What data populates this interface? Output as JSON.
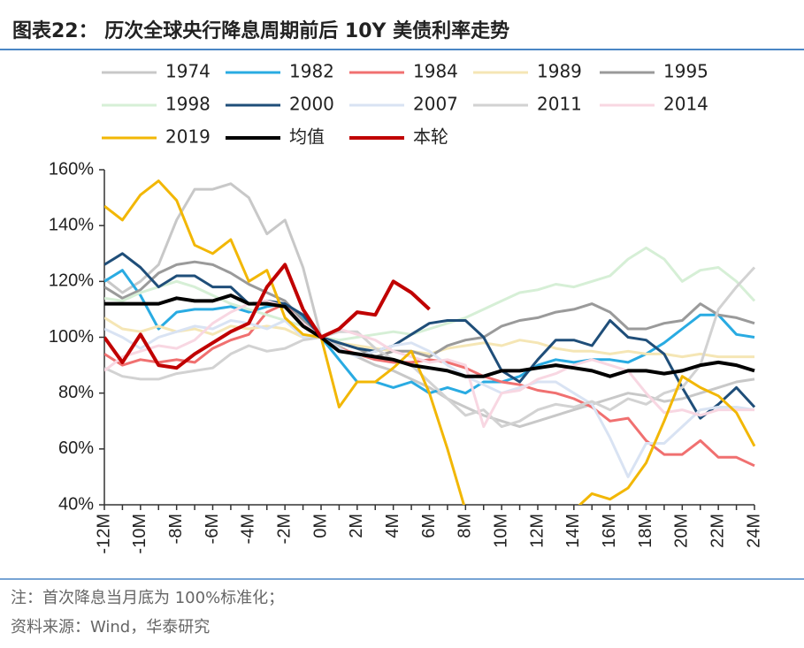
{
  "chart_data": {
    "type": "line",
    "title": "图表22： 历次全球央行降息周期前后 10Y 美债利率走势",
    "notes": [
      "注：首次降息当月底为 100%标准化；",
      "资料来源：Wind，华泰研究"
    ],
    "categories": [
      "-12M",
      null,
      "-10M",
      null,
      "-8M",
      null,
      "-6M",
      null,
      "-4M",
      null,
      "-2M",
      null,
      "0M",
      null,
      "2M",
      null,
      "4M",
      null,
      "6M",
      null,
      "8M",
      null,
      "10M",
      null,
      "12M",
      null,
      "14M",
      null,
      "16M",
      null,
      "18M",
      null,
      "20M",
      null,
      "22M",
      null,
      "24M"
    ],
    "ylim": [
      40,
      160
    ],
    "yticks": [
      {
        "value": 40,
        "label": "40%"
      },
      {
        "value": 60,
        "label": "60%"
      },
      {
        "value": 80,
        "label": "80%"
      },
      {
        "value": 100,
        "label": "100%"
      },
      {
        "value": 120,
        "label": "120%"
      },
      {
        "value": 140,
        "label": "140%"
      },
      {
        "value": 160,
        "label": "160%"
      }
    ],
    "grid": false,
    "legend": "top",
    "series": [
      {
        "name": "1974",
        "color": "#c8c8c8",
        "values": [
          121,
          116,
          120,
          126,
          142,
          153,
          153,
          155,
          150,
          137,
          142,
          125,
          100,
          97,
          93,
          90,
          88,
          85,
          82,
          78,
          75,
          72,
          70,
          68,
          70,
          72,
          74,
          76,
          78,
          80,
          79,
          77,
          78,
          80,
          82,
          84,
          85
        ]
      },
      {
        "name": "1982",
        "color": "#29abe2",
        "values": [
          120,
          124,
          115,
          103,
          109,
          110,
          110,
          111,
          109,
          111,
          112,
          107,
          100,
          92,
          84,
          84,
          82,
          84,
          80,
          82,
          80,
          84,
          84,
          86,
          90,
          92,
          91,
          92,
          92,
          91,
          94,
          98,
          103,
          108,
          108,
          101,
          100
        ]
      },
      {
        "name": "1984",
        "color": "#f07070",
        "values": [
          94,
          90,
          92,
          91,
          92,
          91,
          96,
          99,
          101,
          109,
          112,
          104,
          100,
          96,
          94,
          92,
          91,
          91,
          92,
          91,
          89,
          86,
          84,
          83,
          81,
          80,
          78,
          75,
          70,
          71,
          63,
          58,
          58,
          63,
          57,
          57,
          54
        ]
      },
      {
        "name": "1989",
        "color": "#f5e6b5",
        "values": [
          107,
          103,
          102,
          104,
          102,
          103,
          101,
          104,
          103,
          104,
          103,
          100,
          100,
          98,
          97,
          96,
          95,
          95,
          94,
          96,
          97,
          98,
          97,
          99,
          98,
          96,
          95,
          95,
          94,
          95,
          94,
          94,
          93,
          94,
          93,
          93,
          93
        ]
      },
      {
        "name": "1995",
        "color": "#9a9a9a",
        "values": [
          118,
          114,
          117,
          123,
          126,
          127,
          126,
          123,
          119,
          116,
          113,
          106,
          100,
          98,
          96,
          93,
          95,
          95,
          93,
          97,
          99,
          100,
          104,
          106,
          107,
          109,
          110,
          112,
          109,
          103,
          103,
          105,
          106,
          112,
          108,
          107,
          105
        ]
      },
      {
        "name": "1998",
        "color": "#d6efd6",
        "values": [
          114,
          113,
          116,
          118,
          120,
          118,
          115,
          112,
          110,
          108,
          106,
          104,
          100,
          99,
          100,
          101,
          102,
          101,
          103,
          105,
          107,
          110,
          113,
          116,
          117,
          119,
          118,
          120,
          122,
          128,
          132,
          128,
          120,
          124,
          125,
          120,
          113
        ]
      },
      {
        "name": "2000",
        "color": "#1f4e79",
        "values": [
          126,
          130,
          125,
          118,
          122,
          122,
          118,
          118,
          112,
          113,
          112,
          108,
          100,
          98,
          96,
          95,
          97,
          101,
          105,
          106,
          106,
          100,
          88,
          84,
          92,
          99,
          99,
          97,
          106,
          100,
          99,
          94,
          82,
          71,
          76,
          82,
          75
        ]
      },
      {
        "name": "2007",
        "color": "#d9e3f3",
        "values": [
          103,
          100,
          96,
          100,
          102,
          104,
          103,
          106,
          105,
          103,
          106,
          100,
          100,
          96,
          93,
          95,
          97,
          98,
          95,
          90,
          86,
          83,
          80,
          82,
          84,
          84,
          80,
          76,
          64,
          50,
          62,
          62,
          68,
          74,
          75,
          75,
          74
        ]
      },
      {
        "name": "2011",
        "color": "#d2d2d2",
        "values": [
          89,
          86,
          85,
          85,
          87,
          88,
          89,
          94,
          97,
          95,
          96,
          99,
          100,
          102,
          102,
          96,
          92,
          90,
          84,
          78,
          72,
          74,
          68,
          70,
          74,
          76,
          75,
          77,
          74,
          78,
          76,
          80,
          82,
          90,
          110,
          118,
          125
        ]
      },
      {
        "name": "2014",
        "color": "#f8d7e2",
        "values": [
          88,
          93,
          95,
          97,
          96,
          99,
          105,
          109,
          112,
          113,
          111,
          105,
          100,
          103,
          101,
          99,
          95,
          93,
          91,
          92,
          90,
          68,
          80,
          81,
          85,
          87,
          90,
          92,
          90,
          88,
          80,
          73,
          74,
          72,
          74,
          74,
          74
        ]
      },
      {
        "name": "2019",
        "color": "#f2b705",
        "values": [
          147,
          142,
          151,
          156,
          149,
          133,
          130,
          135,
          120,
          124,
          107,
          101,
          100,
          75,
          84,
          84,
          89,
          95,
          80,
          60,
          38,
          null,
          null,
          null,
          null,
          null,
          38,
          44,
          42,
          46,
          55,
          70,
          86,
          82,
          79,
          73,
          61
        ]
      },
      {
        "name": "均值",
        "color": "#000000",
        "values": [
          112,
          112,
          112,
          112,
          114,
          113,
          113,
          115,
          112,
          112,
          111,
          104,
          100,
          95,
          94,
          93,
          92,
          90,
          89,
          88,
          86,
          86,
          88,
          88,
          89,
          90,
          89,
          88,
          86,
          88,
          88,
          87,
          88,
          90,
          91,
          90,
          88
        ]
      },
      {
        "name": "本轮",
        "color": "#c00000",
        "values": [
          100,
          91,
          101,
          90,
          89,
          94,
          98,
          102,
          105,
          118,
          126,
          110,
          100,
          103,
          109,
          108,
          120,
          116,
          110,
          null,
          null,
          null,
          null,
          null,
          null,
          null,
          null,
          null,
          null,
          null,
          null,
          null,
          null,
          null,
          null,
          null,
          null
        ]
      }
    ]
  }
}
